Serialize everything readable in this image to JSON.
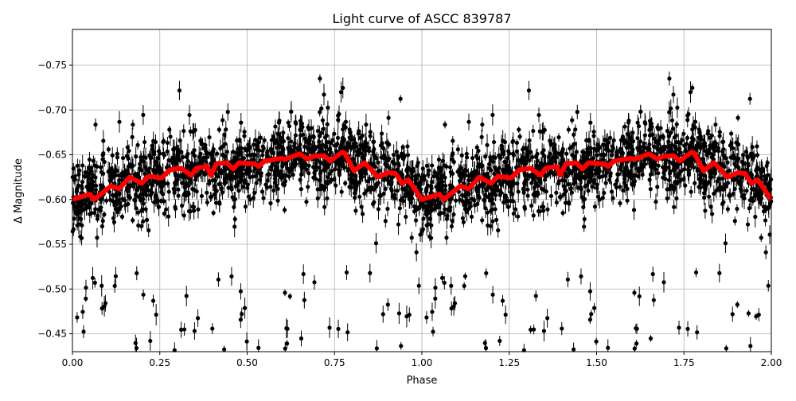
{
  "chart_data": {
    "type": "scatter",
    "title": "Light curve of ASCC 839787",
    "xlabel": "Phase",
    "ylabel": "Δ Magnitude",
    "xlim": [
      0.0,
      2.0
    ],
    "ylim": [
      -0.79,
      -0.43
    ],
    "y_inverted": true,
    "grid": true,
    "x_ticks": [
      "0.00",
      "0.25",
      "0.50",
      "0.75",
      "1.00",
      "1.25",
      "1.50",
      "1.75",
      "2.00"
    ],
    "x_tick_values": [
      0,
      0.25,
      0.5,
      0.75,
      1.0,
      1.25,
      1.5,
      1.75,
      2.0
    ],
    "y_ticks": [
      "−0.75",
      "−0.70",
      "−0.65",
      "−0.60",
      "−0.55",
      "−0.50",
      "−0.45"
    ],
    "y_tick_values": [
      -0.75,
      -0.7,
      -0.65,
      -0.6,
      -0.55,
      -0.5,
      -0.45
    ],
    "observations": {
      "marker": "circle with error bars",
      "color": "#000000"
    },
    "model_curve": {
      "color": "#ff0000",
      "x": [
        0,
        0.05,
        0.062,
        0.11,
        0.134,
        0.164,
        0.198,
        0.218,
        0.255,
        0.278,
        0.31,
        0.34,
        0.355,
        0.385,
        0.396,
        0.412,
        0.442,
        0.46,
        0.476,
        0.52,
        0.533,
        0.55,
        0.597,
        0.608,
        0.65,
        0.674,
        0.688,
        0.72,
        0.738,
        0.772,
        0.779,
        0.806,
        0.836,
        0.875,
        0.904,
        0.925,
        0.943,
        0.961,
        1.0,
        1.05,
        1.062,
        1.11,
        1.134,
        1.164,
        1.198,
        1.218,
        1.255,
        1.278,
        1.31,
        1.34,
        1.355,
        1.385,
        1.396,
        1.412,
        1.442,
        1.46,
        1.476,
        1.52,
        1.533,
        1.55,
        1.597,
        1.608,
        1.65,
        1.674,
        1.688,
        1.72,
        1.738,
        1.772,
        1.779,
        1.806,
        1.836,
        1.875,
        1.904,
        1.925,
        1.943,
        1.961,
        2.0
      ],
      "y": [
        -0.6,
        -0.606,
        -0.6,
        -0.615,
        -0.612,
        -0.625,
        -0.618,
        -0.626,
        -0.624,
        -0.633,
        -0.635,
        -0.627,
        -0.635,
        -0.637,
        -0.627,
        -0.64,
        -0.641,
        -0.634,
        -0.641,
        -0.64,
        -0.637,
        -0.643,
        -0.646,
        -0.645,
        -0.651,
        -0.645,
        -0.648,
        -0.649,
        -0.643,
        -0.653,
        -0.652,
        -0.632,
        -0.641,
        -0.625,
        -0.63,
        -0.629,
        -0.618,
        -0.622,
        -0.6,
        -0.606,
        -0.6,
        -0.615,
        -0.612,
        -0.625,
        -0.618,
        -0.626,
        -0.624,
        -0.633,
        -0.635,
        -0.627,
        -0.635,
        -0.637,
        -0.627,
        -0.64,
        -0.641,
        -0.634,
        -0.641,
        -0.64,
        -0.637,
        -0.643,
        -0.646,
        -0.645,
        -0.651,
        -0.645,
        -0.648,
        -0.649,
        -0.643,
        -0.653,
        -0.652,
        -0.632,
        -0.641,
        -0.625,
        -0.63,
        -0.629,
        -0.618,
        -0.622,
        -0.6
      ]
    }
  }
}
